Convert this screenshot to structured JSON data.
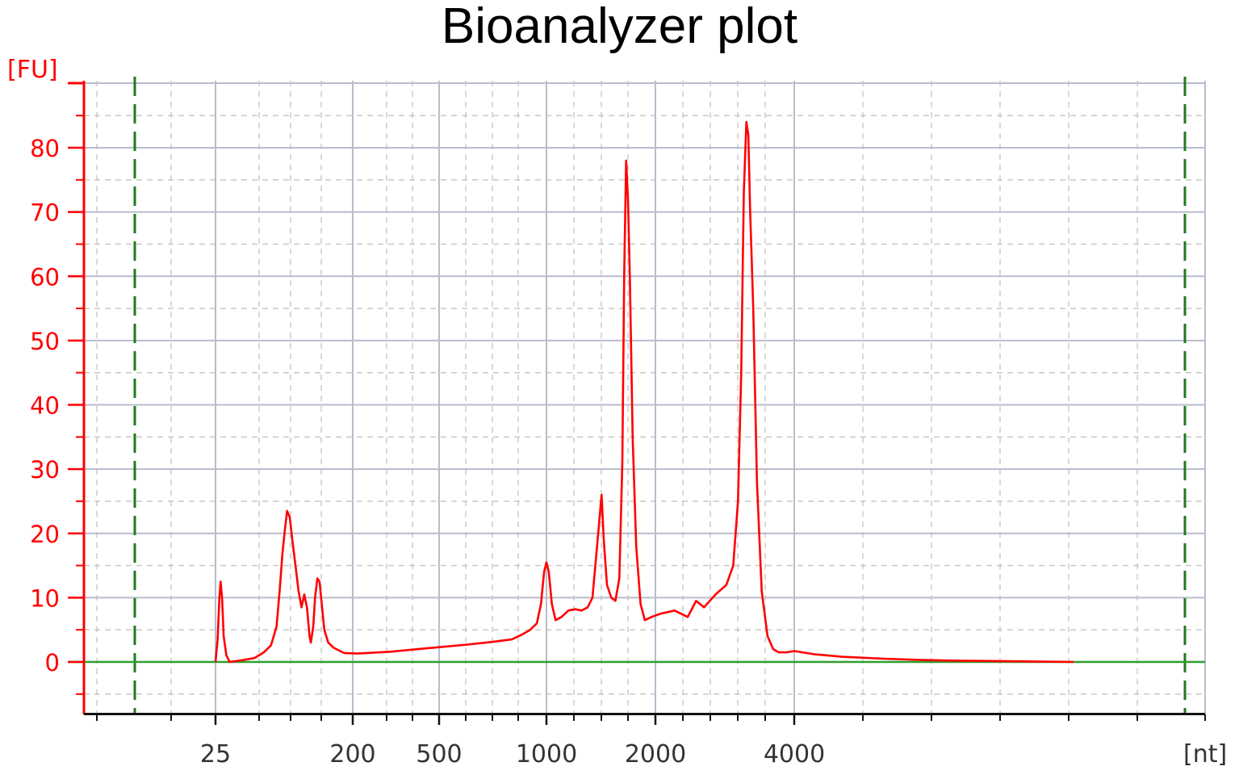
{
  "chart_data": {
    "type": "line",
    "title": "Bioanalyzer plot",
    "ylabel": "[FU]",
    "xlabel": "[nt]",
    "x_ticks": [
      "25",
      "200",
      "500",
      "1000",
      "2000",
      "4000"
    ],
    "y_ticks": [
      0,
      10,
      20,
      30,
      40,
      50,
      60,
      70,
      80
    ],
    "ylim": [
      -8,
      90
    ],
    "grid": true,
    "colors": {
      "trace": "#ff0000",
      "baseline": "#2e9e2e",
      "markers": "#1f7a1f",
      "axis_y": "#ff0000",
      "grid": "#b8bccd"
    },
    "series": [
      {
        "points": [
          [
            25,
            0
          ],
          [
            25.8,
            3.5
          ],
          [
            26.5,
            10
          ],
          [
            27,
            12.5
          ],
          [
            27.6,
            10
          ],
          [
            28.3,
            4
          ],
          [
            29.5,
            1
          ],
          [
            31,
            0
          ],
          [
            38,
            0.3
          ],
          [
            45,
            0.6
          ],
          [
            52,
            1.5
          ],
          [
            58,
            2.6
          ],
          [
            63,
            5.5
          ],
          [
            66,
            11
          ],
          [
            69,
            17
          ],
          [
            71.5,
            20.5
          ],
          [
            74,
            23.5
          ],
          [
            77,
            22.5
          ],
          [
            80,
            19
          ],
          [
            84,
            15
          ],
          [
            88,
            11
          ],
          [
            92,
            8.5
          ],
          [
            96,
            10.5
          ],
          [
            100,
            8.5
          ],
          [
            104,
            4
          ],
          [
            106,
            3
          ],
          [
            110,
            5.5
          ],
          [
            113,
            10
          ],
          [
            117,
            13
          ],
          [
            121,
            12.5
          ],
          [
            125,
            9
          ],
          [
            130,
            5
          ],
          [
            138,
            3
          ],
          [
            150,
            2.2
          ],
          [
            175,
            1.4
          ],
          [
            210,
            1.3
          ],
          [
            300,
            1.6
          ],
          [
            400,
            2
          ],
          [
            500,
            2.3
          ],
          [
            600,
            2.7
          ],
          [
            700,
            3.1
          ],
          [
            800,
            3.5
          ],
          [
            850,
            4.2
          ],
          [
            900,
            5
          ],
          [
            940,
            6
          ],
          [
            965,
            9
          ],
          [
            985,
            14
          ],
          [
            1000,
            15.5
          ],
          [
            1015,
            14
          ],
          [
            1035,
            9
          ],
          [
            1060,
            6.5
          ],
          [
            1100,
            7
          ],
          [
            1150,
            8
          ],
          [
            1200,
            8.2
          ],
          [
            1250,
            8
          ],
          [
            1300,
            8.5
          ],
          [
            1340,
            10
          ],
          [
            1380,
            18
          ],
          [
            1400,
            22
          ],
          [
            1420,
            26
          ],
          [
            1440,
            19
          ],
          [
            1470,
            12
          ],
          [
            1510,
            10
          ],
          [
            1550,
            9.5
          ],
          [
            1590,
            13
          ],
          [
            1620,
            31
          ],
          [
            1640,
            60
          ],
          [
            1660,
            78
          ],
          [
            1680,
            72
          ],
          [
            1700,
            60
          ],
          [
            1730,
            35
          ],
          [
            1770,
            18
          ],
          [
            1820,
            9
          ],
          [
            1870,
            6.5
          ],
          [
            1950,
            7
          ],
          [
            2050,
            7.5
          ],
          [
            2200,
            8
          ],
          [
            2350,
            7
          ],
          [
            2450,
            9.5
          ],
          [
            2550,
            8.5
          ],
          [
            2700,
            10.5
          ],
          [
            2850,
            12
          ],
          [
            2950,
            15
          ],
          [
            3020,
            25
          ],
          [
            3070,
            45
          ],
          [
            3110,
            73
          ],
          [
            3150,
            84
          ],
          [
            3180,
            82
          ],
          [
            3210,
            70
          ],
          [
            3260,
            55
          ],
          [
            3320,
            28
          ],
          [
            3400,
            11
          ],
          [
            3500,
            4
          ],
          [
            3600,
            2
          ],
          [
            3700,
            1.5
          ],
          [
            3850,
            1.5
          ],
          [
            4000,
            1.7
          ],
          [
            4200,
            1.2
          ],
          [
            4500,
            0.8
          ],
          [
            5000,
            0.5
          ],
          [
            5500,
            0.3
          ],
          [
            6000,
            0.2
          ],
          [
            7000,
            0.1
          ],
          [
            8000,
            0
          ]
        ]
      }
    ]
  }
}
